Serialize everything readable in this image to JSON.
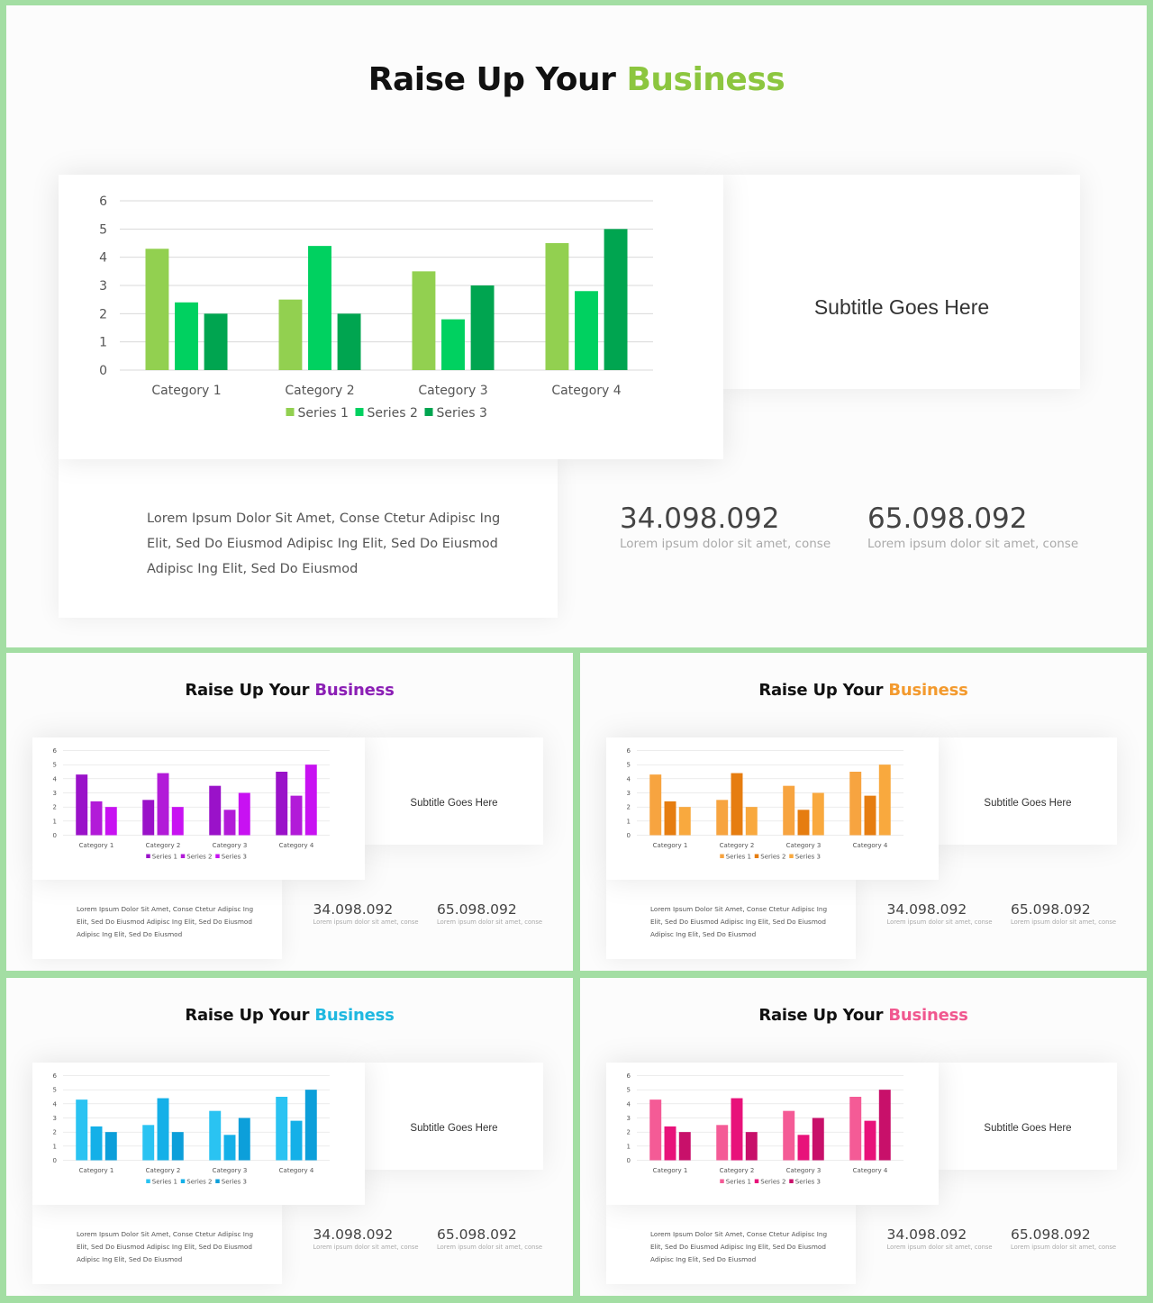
{
  "slides": [
    {
      "title_prefix": "Raise Up Your ",
      "title_accent": "Business",
      "accent": "#8cc63f",
      "series_colors": [
        "#92d050",
        "#00d160",
        "#00a550"
      ],
      "icon": "bar-chart-circle-icon",
      "subtitle": "Subtitle  Goes Here",
      "paragraph_lines": [
        "Lorem Ipsum Dolor Sit Amet, Conse Ctetur Adipisc Ing",
        "Elit, Sed Do Eiusmod Adipisc Ing Elit, Sed Do Eiusmod",
        "Adipisc Ing Elit, Sed Do Eiusmod"
      ],
      "stats": [
        {
          "value": "34.098.092",
          "caption": "Lorem ipsum dolor sit amet, conse"
        },
        {
          "value": "65.098.092",
          "caption": "Lorem ipsum dolor sit amet, conse"
        }
      ]
    },
    {
      "title_prefix": "Raise Up Your ",
      "title_accent": "Business",
      "accent": "#8b1fb5",
      "series_colors": [
        "#9a12c9",
        "#b21bd8",
        "#c812f2"
      ],
      "icon": "bar-chart-circle-icon",
      "subtitle": "Subtitle  Goes Here",
      "paragraph_lines": [
        "Lorem Ipsum Dolor Sit Amet, Conse Ctetur Adipisc Ing",
        "Elit, Sed Do Eiusmod Adipisc Ing Elit, Sed Do Eiusmod",
        "Adipisc Ing Elit, Sed Do Eiusmod"
      ],
      "stats": [
        {
          "value": "34.098.092",
          "caption": "Lorem ipsum dolor sit amet, conse"
        },
        {
          "value": "65.098.092",
          "caption": "Lorem ipsum dolor sit amet, conse"
        }
      ]
    },
    {
      "title_prefix": "Raise Up Your ",
      "title_accent": "Business",
      "accent": "#f39a2e",
      "series_colors": [
        "#f7a440",
        "#e67d10",
        "#f9a93e"
      ],
      "icon": "bar-chart-circle-icon",
      "subtitle": "Subtitle  Goes Here",
      "paragraph_lines": [
        "Lorem Ipsum Dolor Sit Amet, Conse Ctetur Adipisc Ing",
        "Elit, Sed Do Eiusmod Adipisc Ing Elit, Sed Do Eiusmod",
        "Adipisc Ing Elit, Sed Do Eiusmod"
      ],
      "stats": [
        {
          "value": "34.098.092",
          "caption": "Lorem ipsum dolor sit amet, conse"
        },
        {
          "value": "65.098.092",
          "caption": "Lorem ipsum dolor sit amet, conse"
        }
      ]
    },
    {
      "title_prefix": "Raise Up Your ",
      "title_accent": "Business",
      "accent": "#1fb8e0",
      "series_colors": [
        "#2ac3f2",
        "#14b0e8",
        "#0c9fda"
      ],
      "icon": "bar-chart-circle-icon",
      "subtitle": "Subtitle  Goes Here",
      "paragraph_lines": [
        "Lorem Ipsum Dolor Sit Amet, Conse Ctetur Adipisc Ing",
        "Elit, Sed Do Eiusmod Adipisc Ing Elit, Sed Do Eiusmod",
        "Adipisc Ing Elit, Sed Do Eiusmod"
      ],
      "stats": [
        {
          "value": "34.098.092",
          "caption": "Lorem ipsum dolor sit amet, conse"
        },
        {
          "value": "65.098.092",
          "caption": "Lorem ipsum dolor sit amet, conse"
        }
      ]
    },
    {
      "title_prefix": "Raise Up Your ",
      "title_accent": "Business",
      "accent": "#f0588f",
      "series_colors": [
        "#f45b96",
        "#e8127a",
        "#c8106a"
      ],
      "icon": "bar-chart-circle-icon",
      "subtitle": "Subtitle  Goes Here",
      "paragraph_lines": [
        "Lorem Ipsum Dolor Sit Amet, Conse Ctetur Adipisc Ing",
        "Elit, Sed Do Eiusmod Adipisc Ing Elit, Sed Do Eiusmod",
        "Adipisc Ing Elit, Sed Do Eiusmod"
      ],
      "stats": [
        {
          "value": "34.098.092",
          "caption": "Lorem ipsum dolor sit amet, conse"
        },
        {
          "value": "65.098.092",
          "caption": "Lorem ipsum dolor sit amet, conse"
        }
      ]
    }
  ],
  "chart_data": [
    {
      "type": "bar",
      "categories": [
        "Category 1",
        "Category 2",
        "Category 3",
        "Category 4"
      ],
      "series": [
        {
          "name": "Series 1",
          "values": [
            4.3,
            2.5,
            3.5,
            4.5
          ]
        },
        {
          "name": "Series 2",
          "values": [
            2.4,
            4.4,
            1.8,
            2.8
          ]
        },
        {
          "name": "Series 3",
          "values": [
            2,
            2,
            3,
            5
          ]
        }
      ],
      "yticks": [
        "0",
        "1",
        "2",
        "3",
        "4",
        "5",
        "6"
      ],
      "ylim": [
        0,
        6
      ],
      "grid": true,
      "legend": "bottom"
    },
    {
      "type": "bar",
      "categories": [
        "Category 1",
        "Category 2",
        "Category 3",
        "Category 4"
      ],
      "series": [
        {
          "name": "Series 1",
          "values": [
            4.3,
            2.5,
            3.5,
            4.5
          ]
        },
        {
          "name": "Series 2",
          "values": [
            2.4,
            4.4,
            1.8,
            2.8
          ]
        },
        {
          "name": "Series 3",
          "values": [
            2,
            2,
            3,
            5
          ]
        }
      ],
      "yticks": [
        "0",
        "1",
        "2",
        "3",
        "4",
        "5",
        "6"
      ],
      "ylim": [
        0,
        6
      ],
      "grid": true,
      "legend": "bottom"
    },
    {
      "type": "bar",
      "categories": [
        "Category 1",
        "Category 2",
        "Category 3",
        "Category 4"
      ],
      "series": [
        {
          "name": "Series 1",
          "values": [
            4.3,
            2.5,
            3.5,
            4.5
          ]
        },
        {
          "name": "Series 2",
          "values": [
            2.4,
            4.4,
            1.8,
            2.8
          ]
        },
        {
          "name": "Series 3",
          "values": [
            2,
            2,
            3,
            5
          ]
        }
      ],
      "yticks": [
        "0",
        "1",
        "2",
        "3",
        "4",
        "5",
        "6"
      ],
      "ylim": [
        0,
        6
      ],
      "grid": true,
      "legend": "bottom"
    },
    {
      "type": "bar",
      "categories": [
        "Category 1",
        "Category 2",
        "Category 3",
        "Category 4"
      ],
      "series": [
        {
          "name": "Series 1",
          "values": [
            4.3,
            2.5,
            3.5,
            4.5
          ]
        },
        {
          "name": "Series 2",
          "values": [
            2.4,
            4.4,
            1.8,
            2.8
          ]
        },
        {
          "name": "Series 3",
          "values": [
            2,
            2,
            3,
            5
          ]
        }
      ],
      "yticks": [
        "0",
        "1",
        "2",
        "3",
        "4",
        "5",
        "6"
      ],
      "ylim": [
        0,
        6
      ],
      "grid": true,
      "legend": "bottom"
    },
    {
      "type": "bar",
      "categories": [
        "Category 1",
        "Category 2",
        "Category 3",
        "Category 4"
      ],
      "series": [
        {
          "name": "Series 1",
          "values": [
            4.3,
            2.5,
            3.5,
            4.5
          ]
        },
        {
          "name": "Series 2",
          "values": [
            2.4,
            4.4,
            1.8,
            2.8
          ]
        },
        {
          "name": "Series 3",
          "values": [
            2,
            2,
            3,
            5
          ]
        }
      ],
      "yticks": [
        "0",
        "1",
        "2",
        "3",
        "4",
        "5",
        "6"
      ],
      "ylim": [
        0,
        6
      ],
      "grid": true,
      "legend": "bottom"
    }
  ]
}
